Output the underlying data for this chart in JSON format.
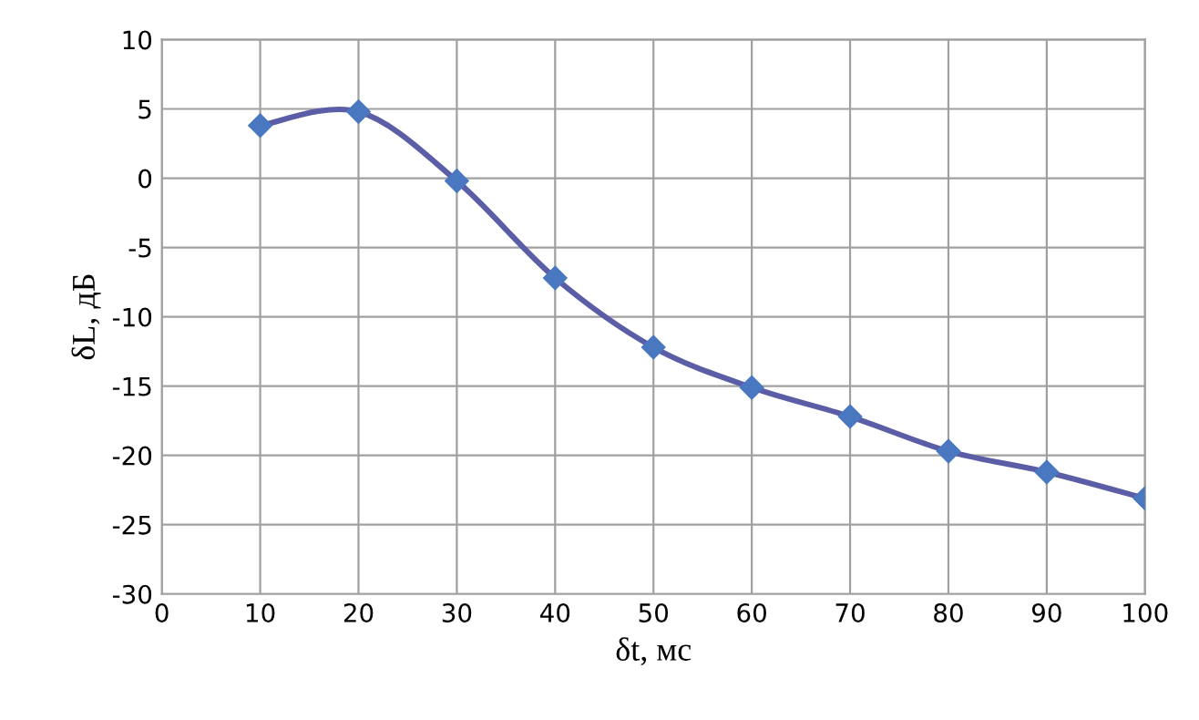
{
  "chart_data": {
    "type": "line",
    "xlabel": "δt, мс",
    "ylabel": "δL, дБ",
    "x": [
      10,
      20,
      30,
      40,
      50,
      60,
      70,
      80,
      90,
      100
    ],
    "series": [
      {
        "color": "#5b5ea6",
        "values": [
          3.8,
          4.8,
          -0.2,
          -7.2,
          -12.2,
          -15.1,
          -17.2,
          -19.7,
          -21.2,
          -23.1
        ]
      }
    ],
    "xlim": [
      0,
      100
    ],
    "xticks": [
      0,
      10,
      20,
      30,
      40,
      50,
      60,
      70,
      80,
      90,
      100
    ],
    "ylim": [
      -30,
      10
    ],
    "yticks": [
      -30,
      -25,
      -20,
      -15,
      -10,
      -5,
      0,
      5,
      10
    ],
    "grid": true,
    "marker": "diamond",
    "line_style": "solid"
  }
}
